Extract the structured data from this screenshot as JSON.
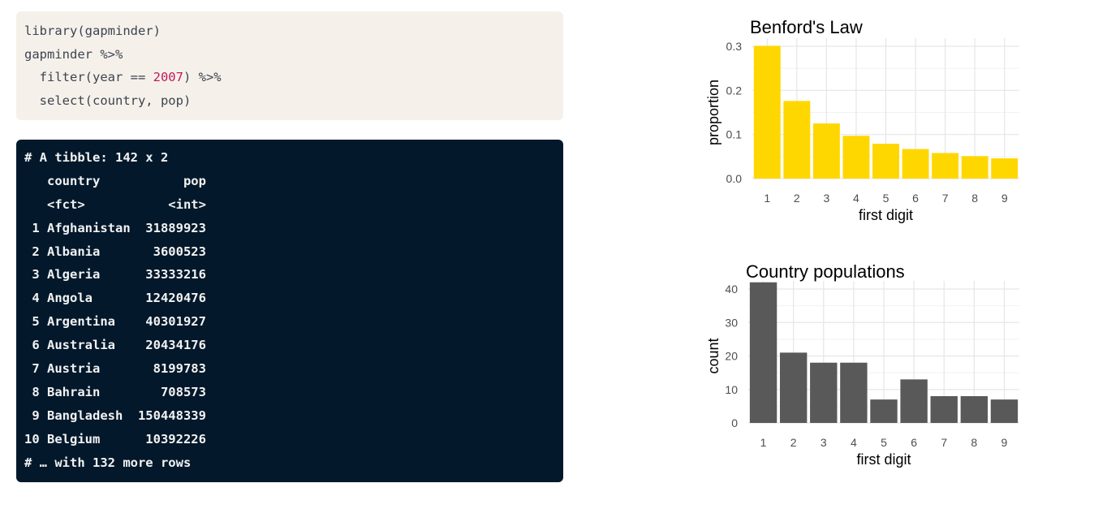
{
  "code": {
    "line1": "library(gapminder)",
    "line2": "gapminder %>%",
    "line3_pre": "  filter(year == ",
    "line3_num": "2007",
    "line3_post": ") %>%",
    "line4": "  select(country, pop)"
  },
  "output": {
    "header": "# A tibble: 142 x 2",
    "col_names": "   country           pop",
    "col_types": "   <fct>           <int>",
    "rows": [
      " 1 Afghanistan  31889923",
      " 2 Albania       3600523",
      " 3 Algeria      33333216",
      " 4 Angola       12420476",
      " 5 Argentina    40301927",
      " 6 Australia    20434176",
      " 7 Austria       8199783",
      " 8 Bahrain        708573",
      " 9 Bangladesh  150448339",
      "10 Belgium      10392226"
    ],
    "footer": "# … with 132 more rows"
  },
  "chart_data": [
    {
      "type": "bar",
      "title": "Benford's Law",
      "xlabel": "first digit",
      "ylabel": "proportion",
      "categories": [
        "1",
        "2",
        "3",
        "4",
        "5",
        "6",
        "7",
        "8",
        "9"
      ],
      "values": [
        0.301,
        0.176,
        0.125,
        0.097,
        0.079,
        0.067,
        0.058,
        0.051,
        0.046
      ],
      "ylim": [
        0,
        0.3
      ],
      "yticks": [
        "0.0",
        "0.1",
        "0.2",
        "0.3"
      ],
      "color": "#ffd700",
      "grid": true
    },
    {
      "type": "bar",
      "title": "Country populations",
      "xlabel": "first digit",
      "ylabel": "count",
      "categories": [
        "1",
        "2",
        "3",
        "4",
        "5",
        "6",
        "7",
        "8",
        "9"
      ],
      "values": [
        42,
        21,
        18,
        18,
        7,
        13,
        8,
        8,
        7
      ],
      "ylim": [
        0,
        40
      ],
      "yticks": [
        "0",
        "10",
        "20",
        "30",
        "40"
      ],
      "color": "#595959",
      "grid": true
    }
  ]
}
